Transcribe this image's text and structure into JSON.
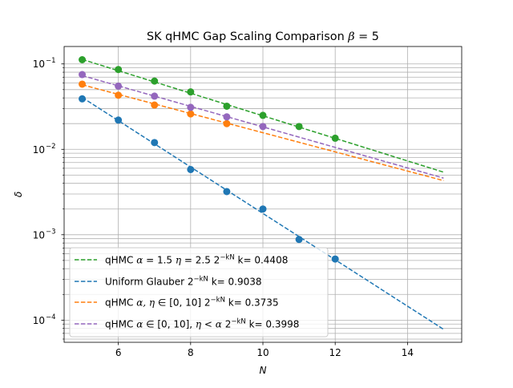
{
  "chart_data": {
    "type": "scatter",
    "title": "SK qHMC Gap Scaling Comparison β = 5",
    "title_main": "SK qHMC Gap Scaling Comparison ",
    "title_beta": "β",
    "title_value": " = 5",
    "xlabel": "N",
    "ylabel": "δ",
    "xlim": [
      4.5,
      15.5
    ],
    "ylim": [
      5.5e-05,
      0.16
    ],
    "yscale": "log",
    "xticks": [
      6,
      8,
      10,
      12,
      14
    ],
    "xtick_labels": [
      "6",
      "8",
      "10",
      "12",
      "14"
    ],
    "yticks": [
      0.0001,
      0.001,
      0.01,
      0.1
    ],
    "ytick_bases": [
      "10",
      "10",
      "10",
      "10"
    ],
    "ytick_exponents": [
      "−4",
      "−3",
      "−2",
      "−1"
    ],
    "grid": true,
    "legend_position": "lower-left",
    "series": [
      {
        "color": "#2ca02c",
        "legend": "qHMC α = 1.5 η = 2.5 2^{−kN} k= 0.4408",
        "legend_parts": {
          "a": "qHMC ",
          "b": "α",
          "c": " = 1.5 ",
          "d": "η",
          "e": " = 2.5 2",
          "sup": "−kN",
          "f": " k= 0.4408"
        },
        "k": 0.4408,
        "points": {
          "x": [
            5,
            6,
            7,
            8,
            9,
            10,
            11,
            12
          ],
          "y": [
            0.112,
            0.086,
            0.063,
            0.047,
            0.032,
            0.025,
            0.0185,
            0.0135
          ]
        },
        "fit": {
          "x": [
            5,
            15
          ],
          "y": [
            0.113,
            0.0054
          ]
        }
      },
      {
        "color": "#1f77b4",
        "legend": "Uniform Glauber 2^{−kN} k= 0.9038",
        "legend_parts": {
          "a": "Uniform Glauber 2",
          "sup": "−kN",
          "f": " k= 0.9038"
        },
        "k": 0.9038,
        "points": {
          "x": [
            5,
            6,
            7,
            8,
            9,
            10,
            11,
            12
          ],
          "y": [
            0.039,
            0.022,
            0.012,
            0.0058,
            0.0032,
            0.002,
            0.00088,
            0.00052
          ]
        },
        "fit": {
          "x": [
            5,
            15
          ],
          "y": [
            0.0405,
            7.8e-05
          ]
        }
      },
      {
        "color": "#ff7f0e",
        "legend": "qHMC α, η ∈ [0, 10] 2^{−kN} k= 0.3735",
        "legend_parts": {
          "a": "qHMC ",
          "b": "α, η",
          "c": " ∈ [0, 10] 2",
          "sup": "−kN",
          "f": " k= 0.3735"
        },
        "k": 0.3735,
        "points": {
          "x": [
            5,
            6,
            7,
            8,
            9
          ],
          "y": [
            0.058,
            0.043,
            0.033,
            0.026,
            0.02
          ]
        },
        "fit": {
          "x": [
            5,
            15
          ],
          "y": [
            0.057,
            0.0043
          ]
        }
      },
      {
        "color": "#9467bd",
        "legend": "qHMC α ∈ [0, 10], η < α 2^{−kN} k= 0.3998",
        "legend_parts": {
          "a": "qHMC ",
          "b": "α",
          "c": " ∈ [0, 10], ",
          "d": "η",
          "e": " < ",
          "g": "α",
          "h": " 2",
          "sup": "−kN",
          "f": " k= 0.3998"
        },
        "k": 0.3998,
        "points": {
          "x": [
            5,
            6,
            7,
            8,
            9,
            10
          ],
          "y": [
            0.075,
            0.055,
            0.042,
            0.031,
            0.024,
            0.0185
          ]
        },
        "fit": {
          "x": [
            5,
            15
          ],
          "y": [
            0.073,
            0.0046
          ]
        }
      }
    ]
  }
}
